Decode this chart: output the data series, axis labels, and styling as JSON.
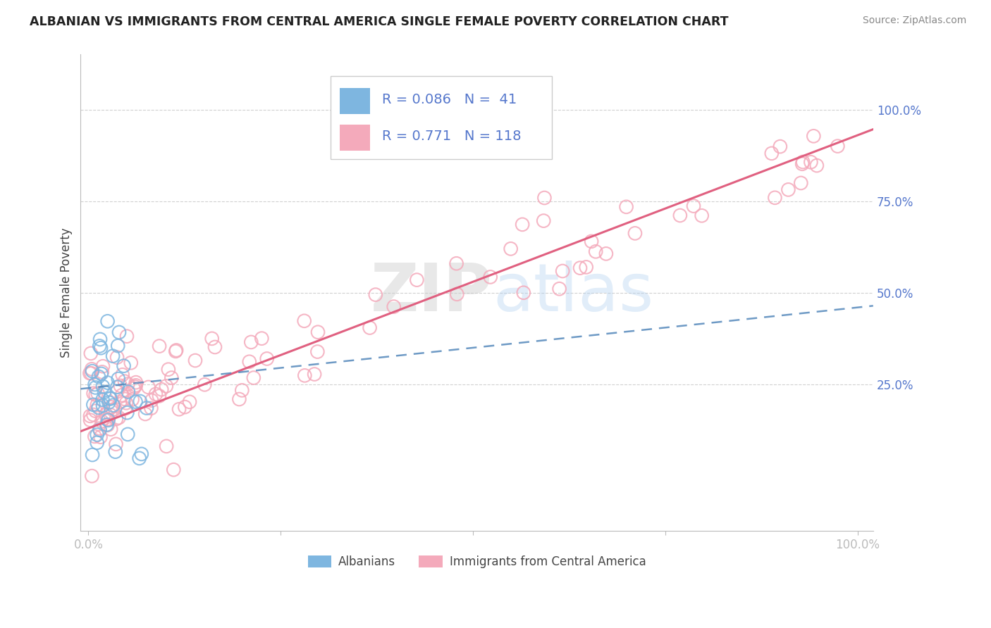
{
  "title": "ALBANIAN VS IMMIGRANTS FROM CENTRAL AMERICA SINGLE FEMALE POVERTY CORRELATION CHART",
  "source": "Source: ZipAtlas.com",
  "ylabel": "Single Female Poverty",
  "legend_label1": "Albanians",
  "legend_label2": "Immigrants from Central America",
  "r1": "0.086",
  "n1": "41",
  "r2": "0.771",
  "n2": "118",
  "blue_color": "#7EB6E0",
  "pink_color": "#F4AABB",
  "blue_line_color": "#5588BB",
  "pink_line_color": "#E06080",
  "background_color": "#FFFFFF",
  "watermark_zip": "ZIP",
  "watermark_atlas": "atlas",
  "grid_color": "#CCCCCC",
  "axis_color": "#BBBBBB",
  "ytick_color": "#5577CC"
}
